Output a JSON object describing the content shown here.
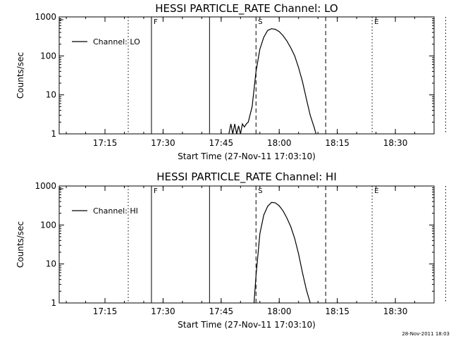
{
  "footer_timestamp": "28-Nov-2011 18:03",
  "chart_data": [
    {
      "type": "line",
      "title": "HESSI PARTICLE_RATE Channel: LO",
      "xlabel": "Start Time (27-Nov-11 17:03:10)",
      "ylabel": "Counts/sec",
      "y_scale": "log",
      "ylim": [
        1,
        1000
      ],
      "xlim": [
        "17:03:10",
        "18:40:00"
      ],
      "x_ticks": [
        "17:15",
        "17:30",
        "17:45",
        "18:00",
        "18:15",
        "18:30"
      ],
      "y_ticks": [
        "1",
        "10",
        "100",
        "1000"
      ],
      "legend": {
        "position": "top-left",
        "entries": [
          "Channel: LO"
        ]
      },
      "series": [
        {
          "name": "Channel: LO",
          "x": [
            "17:47:00",
            "17:47:30",
            "17:48:00",
            "17:48:30",
            "17:49:00",
            "17:49:30",
            "17:50:00",
            "17:50:30",
            "17:51:00",
            "17:51:30",
            "17:52:00",
            "17:53:00",
            "17:54:00",
            "17:55:00",
            "17:56:00",
            "17:57:00",
            "17:58:00",
            "17:59:00",
            "18:00:00",
            "18:01:00",
            "18:02:00",
            "18:03:00",
            "18:04:00",
            "18:05:00",
            "18:06:00",
            "18:07:00",
            "18:08:00",
            "18:09:00",
            "18:09:30"
          ],
          "values": [
            1,
            1.8,
            1,
            1.8,
            1,
            1.6,
            1,
            1.8,
            1.5,
            1.8,
            2,
            5,
            40,
            150,
            300,
            450,
            500,
            480,
            420,
            330,
            240,
            160,
            100,
            50,
            22,
            8,
            3,
            1.5,
            1
          ]
        }
      ],
      "vertical_markers": [
        {
          "label": "",
          "time": "17:21:00",
          "style": "dotted"
        },
        {
          "label": "F",
          "time": "17:27:00",
          "style": "solid"
        },
        {
          "label": "",
          "time": "17:42:00",
          "style": "solid"
        },
        {
          "label": "S",
          "time": "17:54:00",
          "style": "dashed"
        },
        {
          "label": "",
          "time": "18:12:00",
          "style": "dashed"
        },
        {
          "label": "E",
          "time": "18:24:00",
          "style": "dotted"
        },
        {
          "label": "",
          "time": "18:43:00",
          "style": "dotted"
        }
      ]
    },
    {
      "type": "line",
      "title": "HESSI PARTICLE_RATE Channel: HI",
      "xlabel": "Start Time (27-Nov-11 17:03:10)",
      "ylabel": "Counts/sec",
      "y_scale": "log",
      "ylim": [
        1,
        1000
      ],
      "xlim": [
        "17:03:10",
        "18:40:00"
      ],
      "x_ticks": [
        "17:15",
        "17:30",
        "17:45",
        "18:00",
        "18:15",
        "18:30"
      ],
      "y_ticks": [
        "1",
        "10",
        "100",
        "1000"
      ],
      "legend": {
        "position": "top-left",
        "entries": [
          "Channel: HI"
        ]
      },
      "series": [
        {
          "name": "Channel: HI",
          "x": [
            "17:53:30",
            "17:54:00",
            "17:55:00",
            "17:56:00",
            "17:57:00",
            "17:58:00",
            "17:59:00",
            "18:00:00",
            "18:01:00",
            "18:02:00",
            "18:03:00",
            "18:04:00",
            "18:05:00",
            "18:06:00",
            "18:07:00",
            "18:08:00"
          ],
          "values": [
            1,
            5,
            60,
            180,
            300,
            380,
            370,
            310,
            230,
            150,
            90,
            45,
            18,
            6,
            2.2,
            1
          ]
        }
      ],
      "vertical_markers": [
        {
          "label": "",
          "time": "17:21:00",
          "style": "dotted"
        },
        {
          "label": "F",
          "time": "17:27:00",
          "style": "solid"
        },
        {
          "label": "",
          "time": "17:42:00",
          "style": "solid"
        },
        {
          "label": "S",
          "time": "17:54:00",
          "style": "dashed"
        },
        {
          "label": "",
          "time": "18:12:00",
          "style": "dashed"
        },
        {
          "label": "E",
          "time": "18:24:00",
          "style": "dotted"
        },
        {
          "label": "",
          "time": "18:43:00",
          "style": "dotted"
        }
      ]
    }
  ]
}
